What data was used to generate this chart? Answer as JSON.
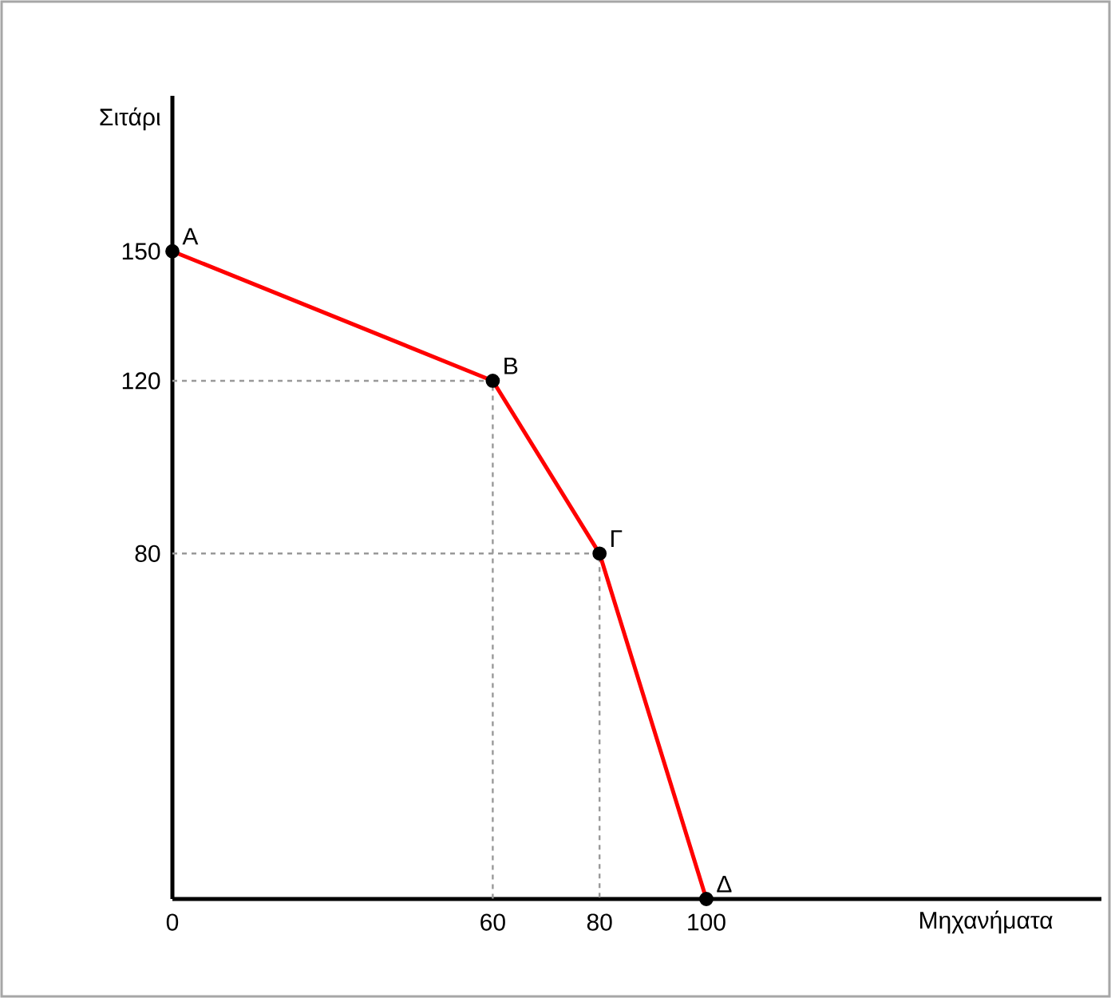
{
  "chart_data": {
    "type": "line",
    "xlabel": "Μηχανήματα",
    "ylabel": "Σιτάρι",
    "x": [
      0,
      60,
      80,
      100
    ],
    "series": [
      {
        "x": [
          0,
          60,
          60
        ],
        "values": [
          120,
          120,
          0
        ],
        "color": "#999999",
        "line_style": "dashed",
        "marker": "none"
      },
      {
        "x": [
          0,
          80,
          80
        ],
        "values": [
          80,
          80,
          0
        ],
        "color": "#999999",
        "line_style": "dashed",
        "marker": "none"
      },
      {
        "color": "#ff0000",
        "values": [
          150,
          120,
          80,
          0
        ]
      }
    ],
    "xlim": [
      0,
      174
    ],
    "ylim": [
      0,
      186
    ],
    "xticks": [
      0,
      60,
      80,
      100
    ],
    "yticks": [
      80,
      120,
      150
    ],
    "marker": "circle",
    "line_style": "solid",
    "grid": false,
    "annotations": [
      {
        "text": "Α",
        "x": 0,
        "y": 150
      },
      {
        "text": "Β",
        "x": 60,
        "y": 120
      },
      {
        "text": "Γ",
        "x": 80,
        "y": 80
      },
      {
        "text": "Δ",
        "x": 100,
        "y": 0
      }
    ]
  }
}
